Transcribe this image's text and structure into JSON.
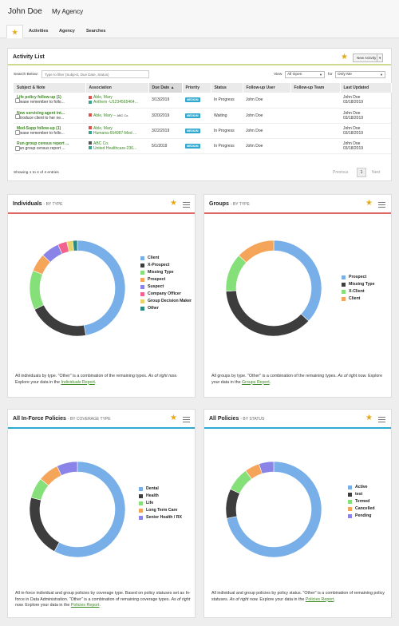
{
  "header": {
    "user_name": "John Doe",
    "agency": "My Agency"
  },
  "tabs": [
    {
      "label": "Activities"
    },
    {
      "label": "Agency"
    },
    {
      "label": "Searches"
    }
  ],
  "activity": {
    "title": "Activity List",
    "new_button": "New Activity",
    "search_label": "Search Below:",
    "search_placeholder": "Type to filter (Subject, Due Date, Status)",
    "view_label": "View",
    "view_value": "All Open",
    "for_label": "for",
    "for_value": "Only Me",
    "columns": [
      "Subject & Note",
      "Association",
      "Due Date",
      "Priority",
      "Status",
      "Follow-up User",
      "Follow-up Team",
      "Last Updated"
    ],
    "rows": [
      {
        "subject": "Life policy follow-up (1)",
        "note": "Please remember to follo...",
        "assoc1": "Able, Mary",
        "assoc2": "Anthem -U1234565464...",
        "due": "3/13/2019",
        "priority": "MEDIUM",
        "status": "In Progress",
        "user": "John Doe",
        "team": "",
        "upd1": "John Doe",
        "upd2": "03/18/2019"
      },
      {
        "subject": "New servicing agent int...",
        "note": "Introduce client to her ne...",
        "assoc1": "Able, Mary",
        "assoc1_extra": "ABC Co.",
        "assoc2": "",
        "due": "3/20/2019",
        "priority": "MEDIUM",
        "status": "Waiting",
        "user": "John Doe",
        "team": "",
        "upd1": "John Doe",
        "upd2": "03/18/2019"
      },
      {
        "subject": "Med-Supp follow-up (1)",
        "note": "Please remember to follo...",
        "assoc1": "Able, Mary",
        "assoc2": "Humana-654987-Med ...",
        "due": "3/22/2019",
        "priority": "MEDIUM",
        "status": "In Progress",
        "user": "John Doe",
        "team": "",
        "upd1": "John Doe",
        "upd2": "03/18/2019"
      },
      {
        "subject": "Run group census report ...",
        "note": "Run group census report ...",
        "assoc1": "ABC Co.",
        "assoc2": "United Healthcare-236...",
        "due": "5/1/2019",
        "priority": "MEDIUM",
        "status": "In Progress",
        "user": "John Doe",
        "team": "",
        "upd1": "John Doe",
        "upd2": "03/18/2019"
      }
    ],
    "showing": "Showing 1 to 4 of 4 entries",
    "pager": {
      "previous": "Previous",
      "page": "1",
      "next": "Next"
    }
  },
  "colors": {
    "accent_green": "#3a8a1f",
    "star": "#e6a817",
    "badge": "#2ea8d1"
  },
  "chart_data": [
    {
      "type": "pie",
      "title": "Individuals",
      "subtitle": "- BY TYPE",
      "accent": "#e06666",
      "categories": [
        "Client",
        "X-Prospect",
        "Missing Type",
        "Prospect",
        "Suspect",
        "Company Officer",
        "Group Decision Maker",
        "Other"
      ],
      "values": [
        46,
        20,
        13,
        6,
        6,
        3,
        2,
        1.5
      ],
      "colors": [
        "#78afe8",
        "#3d3d3d",
        "#86e07a",
        "#f4a55a",
        "#8b84e8",
        "#f2628c",
        "#e8d36a",
        "#2b8b83"
      ],
      "desc": "All individuals by type. \"Other\" is a combination of the remaining types.",
      "asof": "As of right now.",
      "explore": "Explore your data in the",
      "link": "Individuals Report",
      "end": "."
    },
    {
      "type": "pie",
      "title": "Groups",
      "subtitle": "- BY TYPE",
      "accent": "#e06666",
      "categories": [
        "Prospect",
        "Missing Type",
        "X-Client",
        "Client"
      ],
      "values": [
        37,
        37,
        13,
        13
      ],
      "colors": [
        "#78afe8",
        "#3d3d3d",
        "#86e07a",
        "#f4a55a"
      ],
      "desc": "All groups by type. \"Other\" is a combination of the remaining types.",
      "asof": "As of right now.",
      "explore": "Explore your data in the",
      "link": "Groups Report",
      "end": "."
    },
    {
      "type": "pie",
      "title": "All In-Force Policies",
      "subtitle": "- BY COVERAGE TYPE",
      "accent": "#2ea8d1",
      "categories": [
        "Dental",
        "Health",
        "Life",
        "Long Term Care",
        "Senior Health / RX"
      ],
      "values": [
        58,
        21,
        7,
        7,
        7
      ],
      "colors": [
        "#78afe8",
        "#3d3d3d",
        "#86e07a",
        "#f4a55a",
        "#8b84e8"
      ],
      "desc": "All in-force individual and group policies by coverage type. Based on policy statuses set as In-force in Data Administration. \"Other\" is a combination of remaining coverage types.",
      "asof": "As of right now.",
      "explore": "Explore your data in the",
      "link": "Policies Report",
      "end": "."
    },
    {
      "type": "pie",
      "title": "All Policies",
      "subtitle": "- BY STATUS",
      "accent": "#2ea8d1",
      "categories": [
        "Active",
        "test",
        "Termed",
        "Cancelled",
        "Pending"
      ],
      "values": [
        72,
        10,
        8,
        5,
        5
      ],
      "colors": [
        "#78afe8",
        "#3d3d3d",
        "#86e07a",
        "#f4a55a",
        "#8b84e8"
      ],
      "desc": "All individual and group policies by policy status. \"Other\" is a combination of remaining policy statuses.",
      "asof": "As of right now.",
      "explore": "Explore your data in the",
      "link": "Policies Report",
      "end": "."
    }
  ]
}
